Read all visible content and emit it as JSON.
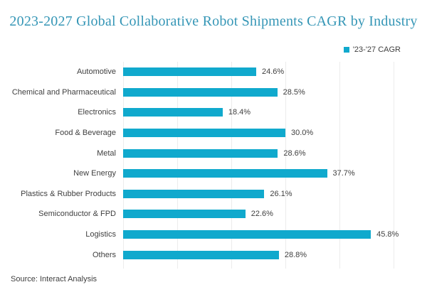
{
  "title": "2023-2027 Global Collaborative Robot Shipments CAGR by Industry",
  "legend": {
    "label": "'23-'27 CAGR"
  },
  "source": "Source: Interact Analysis",
  "colors": {
    "bar": "#10A9CD",
    "title": "#3596B6",
    "text": "#404040",
    "gridline": "#ECECEC",
    "background": "#FFFFFF"
  },
  "chart_data": {
    "type": "bar",
    "orientation": "horizontal",
    "title": "2023-2027 Global Collaborative Robot Shipments CAGR by Industry",
    "categories": [
      "Automotive",
      "Chemical and Pharmaceutical",
      "Electronics",
      "Food & Beverage",
      "Metal",
      "New Energy",
      "Plastics & Rubber Products",
      "Semiconductor & FPD",
      "Logistics",
      "Others"
    ],
    "series": [
      {
        "name": "'23-'27 CAGR",
        "values": [
          24.6,
          28.5,
          18.4,
          30.0,
          28.6,
          37.7,
          26.1,
          22.6,
          45.8,
          28.8
        ]
      }
    ],
    "value_labels": [
      "24.6%",
      "28.5%",
      "18.4%",
      "30.0%",
      "28.6%",
      "37.7%",
      "26.1%",
      "22.6%",
      "45.8%",
      "28.8%"
    ],
    "xlabel": "",
    "ylabel": "",
    "xlim": [
      0,
      50
    ],
    "grid": true,
    "gridline_ticks": [
      0,
      10,
      20,
      30,
      40,
      50
    ],
    "legend_position": "top-right",
    "source": "Source: Interact Analysis"
  }
}
